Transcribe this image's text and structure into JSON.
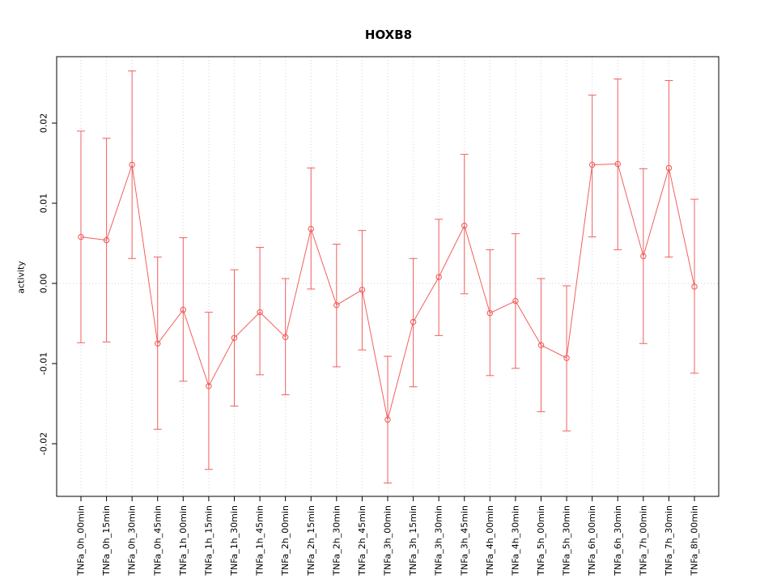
{
  "chart_data": {
    "type": "line",
    "title": "HOXB8",
    "xlabel": "",
    "ylabel": "activity",
    "legend": "none",
    "grid": "dotted-vertical-per-category-and-zero-line",
    "series_color": "#f25f5f",
    "grid_color": "#d4d4d4",
    "zero_line_color": "#ddcccc",
    "box_color": "#000000",
    "ylim": [
      -0.027,
      0.028
    ],
    "yticks": [
      -0.02,
      -0.01,
      0,
      0.01,
      0.02
    ],
    "ytick_labels": [
      "-0.02",
      "-0.01",
      "0.00",
      "0.01",
      "0.02"
    ],
    "categories": [
      "TNFa_0h_00min",
      "TNFa_0h_15min",
      "TNFa_0h_30min",
      "TNFa_0h_45min",
      "TNFa_1h_00min",
      "TNFa_1h_15min",
      "TNFa_1h_30min",
      "TNFa_1h_45min",
      "TNFa_2h_00min",
      "TNFa_2h_15min",
      "TNFa_2h_30min",
      "TNFa_2h_45min",
      "TNFa_3h_00min",
      "TNFa_3h_15min",
      "TNFa_3h_30min",
      "TNFa_3h_45min",
      "TNFa_4h_00min",
      "TNFa_4h_30min",
      "TNFa_5h_00min",
      "TNFa_5h_30min",
      "TNFa_6h_00min",
      "TNFa_6h_30min",
      "TNFa_7h_00min",
      "TNFa_7h_30min",
      "TNFa_8h_00min"
    ],
    "values": [
      0.0058,
      0.0054,
      0.0148,
      -0.0075,
      -0.0033,
      -0.0128,
      -0.0068,
      -0.0036,
      -0.0067,
      0.0068,
      -0.0027,
      -0.0008,
      -0.017,
      -0.0048,
      0.0008,
      0.0072,
      -0.0037,
      -0.0022,
      -0.0077,
      -0.0093,
      0.0148,
      0.0149,
      0.0034,
      0.0144,
      -0.0004
    ],
    "upper": [
      0.019,
      0.0181,
      0.0265,
      0.0033,
      0.0057,
      -0.0036,
      0.0017,
      0.0045,
      0.0006,
      0.0144,
      0.0049,
      0.0066,
      -0.0091,
      0.0031,
      0.008,
      0.0161,
      0.0042,
      0.0062,
      0.0006,
      -0.0003,
      0.0235,
      0.0255,
      0.0143,
      0.0253,
      0.0105
    ],
    "lower": [
      -0.0074,
      -0.0073,
      0.0031,
      -0.0182,
      -0.0122,
      -0.0232,
      -0.0153,
      -0.0114,
      -0.0139,
      -0.0007,
      -0.0104,
      -0.0083,
      -0.0249,
      -0.0129,
      -0.0065,
      -0.0013,
      -0.0115,
      -0.0106,
      -0.016,
      -0.0184,
      0.0058,
      0.0042,
      -0.0075,
      0.0033,
      -0.0112
    ]
  }
}
